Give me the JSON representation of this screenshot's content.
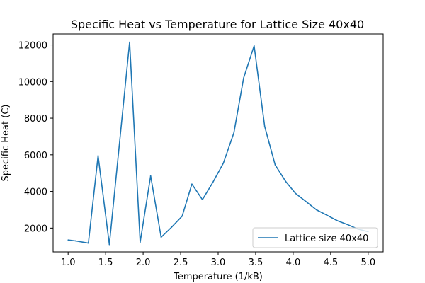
{
  "chart_data": {
    "type": "line",
    "title": "Specific Heat vs Temperature for Lattice Size 40x40",
    "xlabel": "Temperature (1/kB)",
    "ylabel": "Specific Heat (C)",
    "xlim": [
      0.8,
      5.2
    ],
    "ylim": [
      700,
      12600
    ],
    "x_ticks": [
      1.0,
      1.5,
      2.0,
      2.5,
      3.0,
      3.5,
      4.0,
      4.5,
      5.0
    ],
    "x_tick_labels": [
      "1.0",
      "1.5",
      "2.0",
      "2.5",
      "3.0",
      "3.5",
      "4.0",
      "4.5",
      "5.0"
    ],
    "y_ticks": [
      2000,
      4000,
      6000,
      8000,
      10000,
      12000
    ],
    "y_tick_labels": [
      "2000",
      "4000",
      "6000",
      "8000",
      "10000",
      "12000"
    ],
    "grid": false,
    "legend_position": "lower-right",
    "series": [
      {
        "name": "Lattice size 40x40",
        "color": "#1f77b4",
        "x": [
          1.0,
          1.1,
          1.27,
          1.4,
          1.55,
          1.82,
          1.96,
          2.1,
          2.24,
          2.38,
          2.52,
          2.65,
          2.79,
          2.93,
          3.07,
          3.21,
          3.34,
          3.48,
          3.62,
          3.76,
          3.9,
          4.03,
          4.17,
          4.31,
          4.45,
          4.59,
          4.72,
          4.86,
          5.0
        ],
        "values": [
          1350,
          1300,
          1180,
          5950,
          1100,
          12150,
          1230,
          4850,
          1500,
          2050,
          2650,
          4400,
          3550,
          4500,
          5550,
          7200,
          10200,
          11950,
          7550,
          5450,
          4550,
          3900,
          3450,
          3000,
          2700,
          2400,
          2200,
          1950,
          1800
        ]
      }
    ]
  }
}
